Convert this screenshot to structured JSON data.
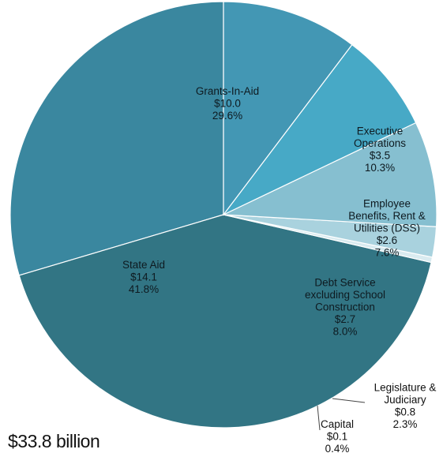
{
  "total_label": "$33.8 billion",
  "chart_data": {
    "type": "pie",
    "start_angle_deg": 90,
    "direction": "counterclockwise",
    "stroke_color": "#ffffff",
    "slices": [
      {
        "label": [
          "Grants-In-Aid"
        ],
        "value_label": "$10.0",
        "percent_label": "29.6%",
        "value": 10.0,
        "percent": 29.6,
        "color": "#3a879f",
        "label_position": "inside"
      },
      {
        "label": [
          "State Aid"
        ],
        "value_label": "$14.1",
        "percent_label": "41.8%",
        "value": 14.1,
        "percent": 41.8,
        "color": "#327584",
        "label_position": "inside"
      },
      {
        "label": [
          "Capital"
        ],
        "value_label": "$0.1",
        "percent_label": "0.4%",
        "value": 0.1,
        "percent": 0.4,
        "color": "#d9ebf0",
        "label_position": "outside"
      },
      {
        "label": [
          "Legislature &",
          "Judiciary"
        ],
        "value_label": "$0.8",
        "percent_label": "2.3%",
        "value": 0.8,
        "percent": 2.3,
        "color": "#a9d2de",
        "label_position": "outside"
      },
      {
        "label": [
          "Debt Service",
          "excluding School",
          "Construction"
        ],
        "value_label": "$2.7",
        "percent_label": "8.0%",
        "value": 2.7,
        "percent": 8.0,
        "color": "#86bfd0",
        "label_position": "inside"
      },
      {
        "label": [
          "Employee",
          "Benefits, Rent &",
          "Utilities (DSS)"
        ],
        "value_label": "$2.6",
        "percent_label": "7.6%",
        "value": 2.6,
        "percent": 7.6,
        "color": "#47a9c6",
        "label_position": "inside"
      },
      {
        "label": [
          "Executive",
          "Operations"
        ],
        "value_label": "$3.5",
        "percent_label": "10.3%",
        "value": 3.5,
        "percent": 10.3,
        "color": "#4397b4",
        "label_position": "inside"
      }
    ]
  }
}
